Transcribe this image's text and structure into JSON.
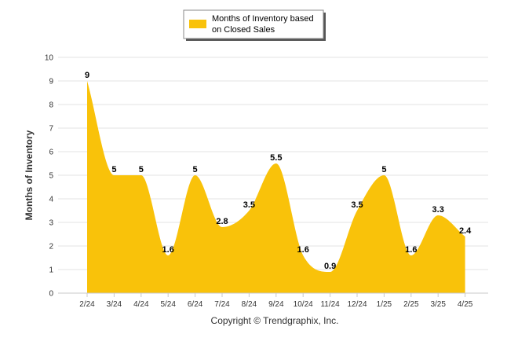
{
  "chart_data": {
    "type": "area",
    "categories": [
      "2/24",
      "3/24",
      "4/24",
      "5/24",
      "6/24",
      "7/24",
      "8/24",
      "9/24",
      "10/24",
      "11/24",
      "12/24",
      "1/25",
      "2/25",
      "3/25",
      "4/25"
    ],
    "series": [
      {
        "name": "Months of Inventory based on Closed Sales",
        "values": [
          9,
          5,
          5,
          1.6,
          5,
          2.8,
          3.5,
          5.5,
          1.6,
          0.9,
          3.5,
          5,
          1.6,
          3.3,
          2.4
        ],
        "color": "#F9C20A"
      }
    ],
    "legend_lines": [
      "Months of Inventory based",
      "on Closed Sales"
    ],
    "ylabel": "Months of Inventory",
    "xlabel": "",
    "ylim": [
      0,
      10
    ],
    "y_ticks": [
      0,
      1,
      2,
      3,
      4,
      5,
      6,
      7,
      8,
      9,
      10
    ],
    "grid": true,
    "legend_position": "top-center",
    "data_labels": [
      "9",
      "5",
      "5",
      "1.6",
      "5",
      "2.8",
      "3.5",
      "5.5",
      "1.6",
      "0.9",
      "3.5",
      "5",
      "1.6",
      "3.3",
      "2.4"
    ]
  },
  "footer": {
    "copyright": "Copyright © Trendgraphix, Inc."
  }
}
